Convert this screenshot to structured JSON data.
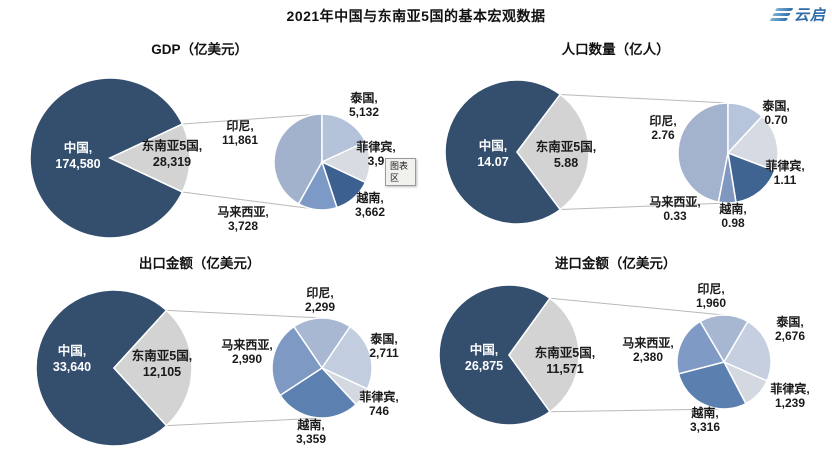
{
  "page": {
    "title": "2021年中国与东南亚5国的基本宏观数据",
    "logo_text": "云启"
  },
  "tooltip": {
    "label": "图表区"
  },
  "chart_data": [
    {
      "type": "pie",
      "variant": "pie-of-pie",
      "title": "GDP（亿美元）",
      "unit": "亿美元",
      "main": [
        {
          "label": "中国",
          "value": "174,580",
          "num": 174580,
          "color": "#344f6e"
        },
        {
          "label": "东南亚5国",
          "value": "28,319",
          "num": 28319,
          "color": "#d3d3d3"
        }
      ],
      "secondary": [
        {
          "label": "印尼",
          "value": "11,861",
          "num": 11861,
          "color": "#a2b2cd"
        },
        {
          "label": "泰国",
          "value": "5,132",
          "num": 5132,
          "color": "#b4c2da"
        },
        {
          "label": "菲律宾",
          "value": "3,9",
          "num": 3936,
          "color": "#d8dbe2",
          "obscured_by_tooltip": true
        },
        {
          "label": "越南",
          "value": "3,662",
          "num": 3662,
          "color": "#3c608f"
        },
        {
          "label": "马来西亚",
          "value": "3,728",
          "num": 3728,
          "color": "#7d9ac6"
        }
      ],
      "sec_start_deg": 209.2,
      "legend_position": "none"
    },
    {
      "type": "pie",
      "variant": "pie-of-pie",
      "title": "人口数量（亿人）",
      "unit": "亿人",
      "main": [
        {
          "label": "中国",
          "value": "14.07",
          "num": 14.07,
          "color": "#344f6e"
        },
        {
          "label": "东南亚5国",
          "value": "5.88",
          "num": 5.88,
          "color": "#d3d3d3"
        }
      ],
      "secondary": [
        {
          "label": "印尼",
          "value": "2.76",
          "num": 2.76,
          "color": "#a3b3ce"
        },
        {
          "label": "泰国",
          "value": "0.70",
          "num": 0.7,
          "color": "#b7c5dc"
        },
        {
          "label": "菲律宾",
          "value": "1.11",
          "num": 1.11,
          "color": "#d6dae2"
        },
        {
          "label": "越南",
          "value": "0.98",
          "num": 0.98,
          "color": "#3f6492"
        },
        {
          "label": "马来西亚",
          "value": "0.33",
          "num": 0.33,
          "color": "#8097c0"
        }
      ],
      "sec_start_deg": 191.0,
      "legend_position": "none"
    },
    {
      "type": "pie",
      "variant": "pie-of-pie",
      "title": "出口金额（亿美元）",
      "unit": "亿美元",
      "main": [
        {
          "label": "中国",
          "value": "33,640",
          "num": 33640,
          "color": "#344f6e"
        },
        {
          "label": "东南亚5国",
          "value": "12,105",
          "num": 12105,
          "color": "#d3d3d3"
        }
      ],
      "secondary": [
        {
          "label": "印尼",
          "value": "2,299",
          "num": 2299,
          "color": "#a8b8d2"
        },
        {
          "label": "泰国",
          "value": "2,711",
          "num": 2711,
          "color": "#c2cddf"
        },
        {
          "label": "菲律宾",
          "value": "746",
          "num": 746,
          "color": "#d4d8e0"
        },
        {
          "label": "越南",
          "value": "3,359",
          "num": 3359,
          "color": "#5c80b0"
        },
        {
          "label": "马来西亚",
          "value": "2,990",
          "num": 2990,
          "color": "#7e9ac4"
        }
      ],
      "sec_start_deg": 325.8,
      "legend_position": "none"
    },
    {
      "type": "pie",
      "variant": "pie-of-pie",
      "title": "进口金额（亿美元）",
      "unit": "亿美元",
      "main": [
        {
          "label": "中国",
          "value": "26,875",
          "num": 26875,
          "color": "#344f6e"
        },
        {
          "label": "东南亚5国",
          "value": "11,571",
          "num": 11571,
          "color": "#d3d3d3"
        }
      ],
      "secondary": [
        {
          "label": "印尼",
          "value": "1,960",
          "num": 1960,
          "color": "#a7b7d1"
        },
        {
          "label": "泰国",
          "value": "2,676",
          "num": 2676,
          "color": "#c5cfdf"
        },
        {
          "label": "菲律宾",
          "value": "1,239",
          "num": 1239,
          "color": "#d4d8e1"
        },
        {
          "label": "越南",
          "value": "3,316",
          "num": 3316,
          "color": "#5b7fae"
        },
        {
          "label": "马来西亚",
          "value": "2,380",
          "num": 2380,
          "color": "#7f9bc5"
        }
      ],
      "sec_start_deg": 329.5,
      "legend_position": "none"
    }
  ]
}
